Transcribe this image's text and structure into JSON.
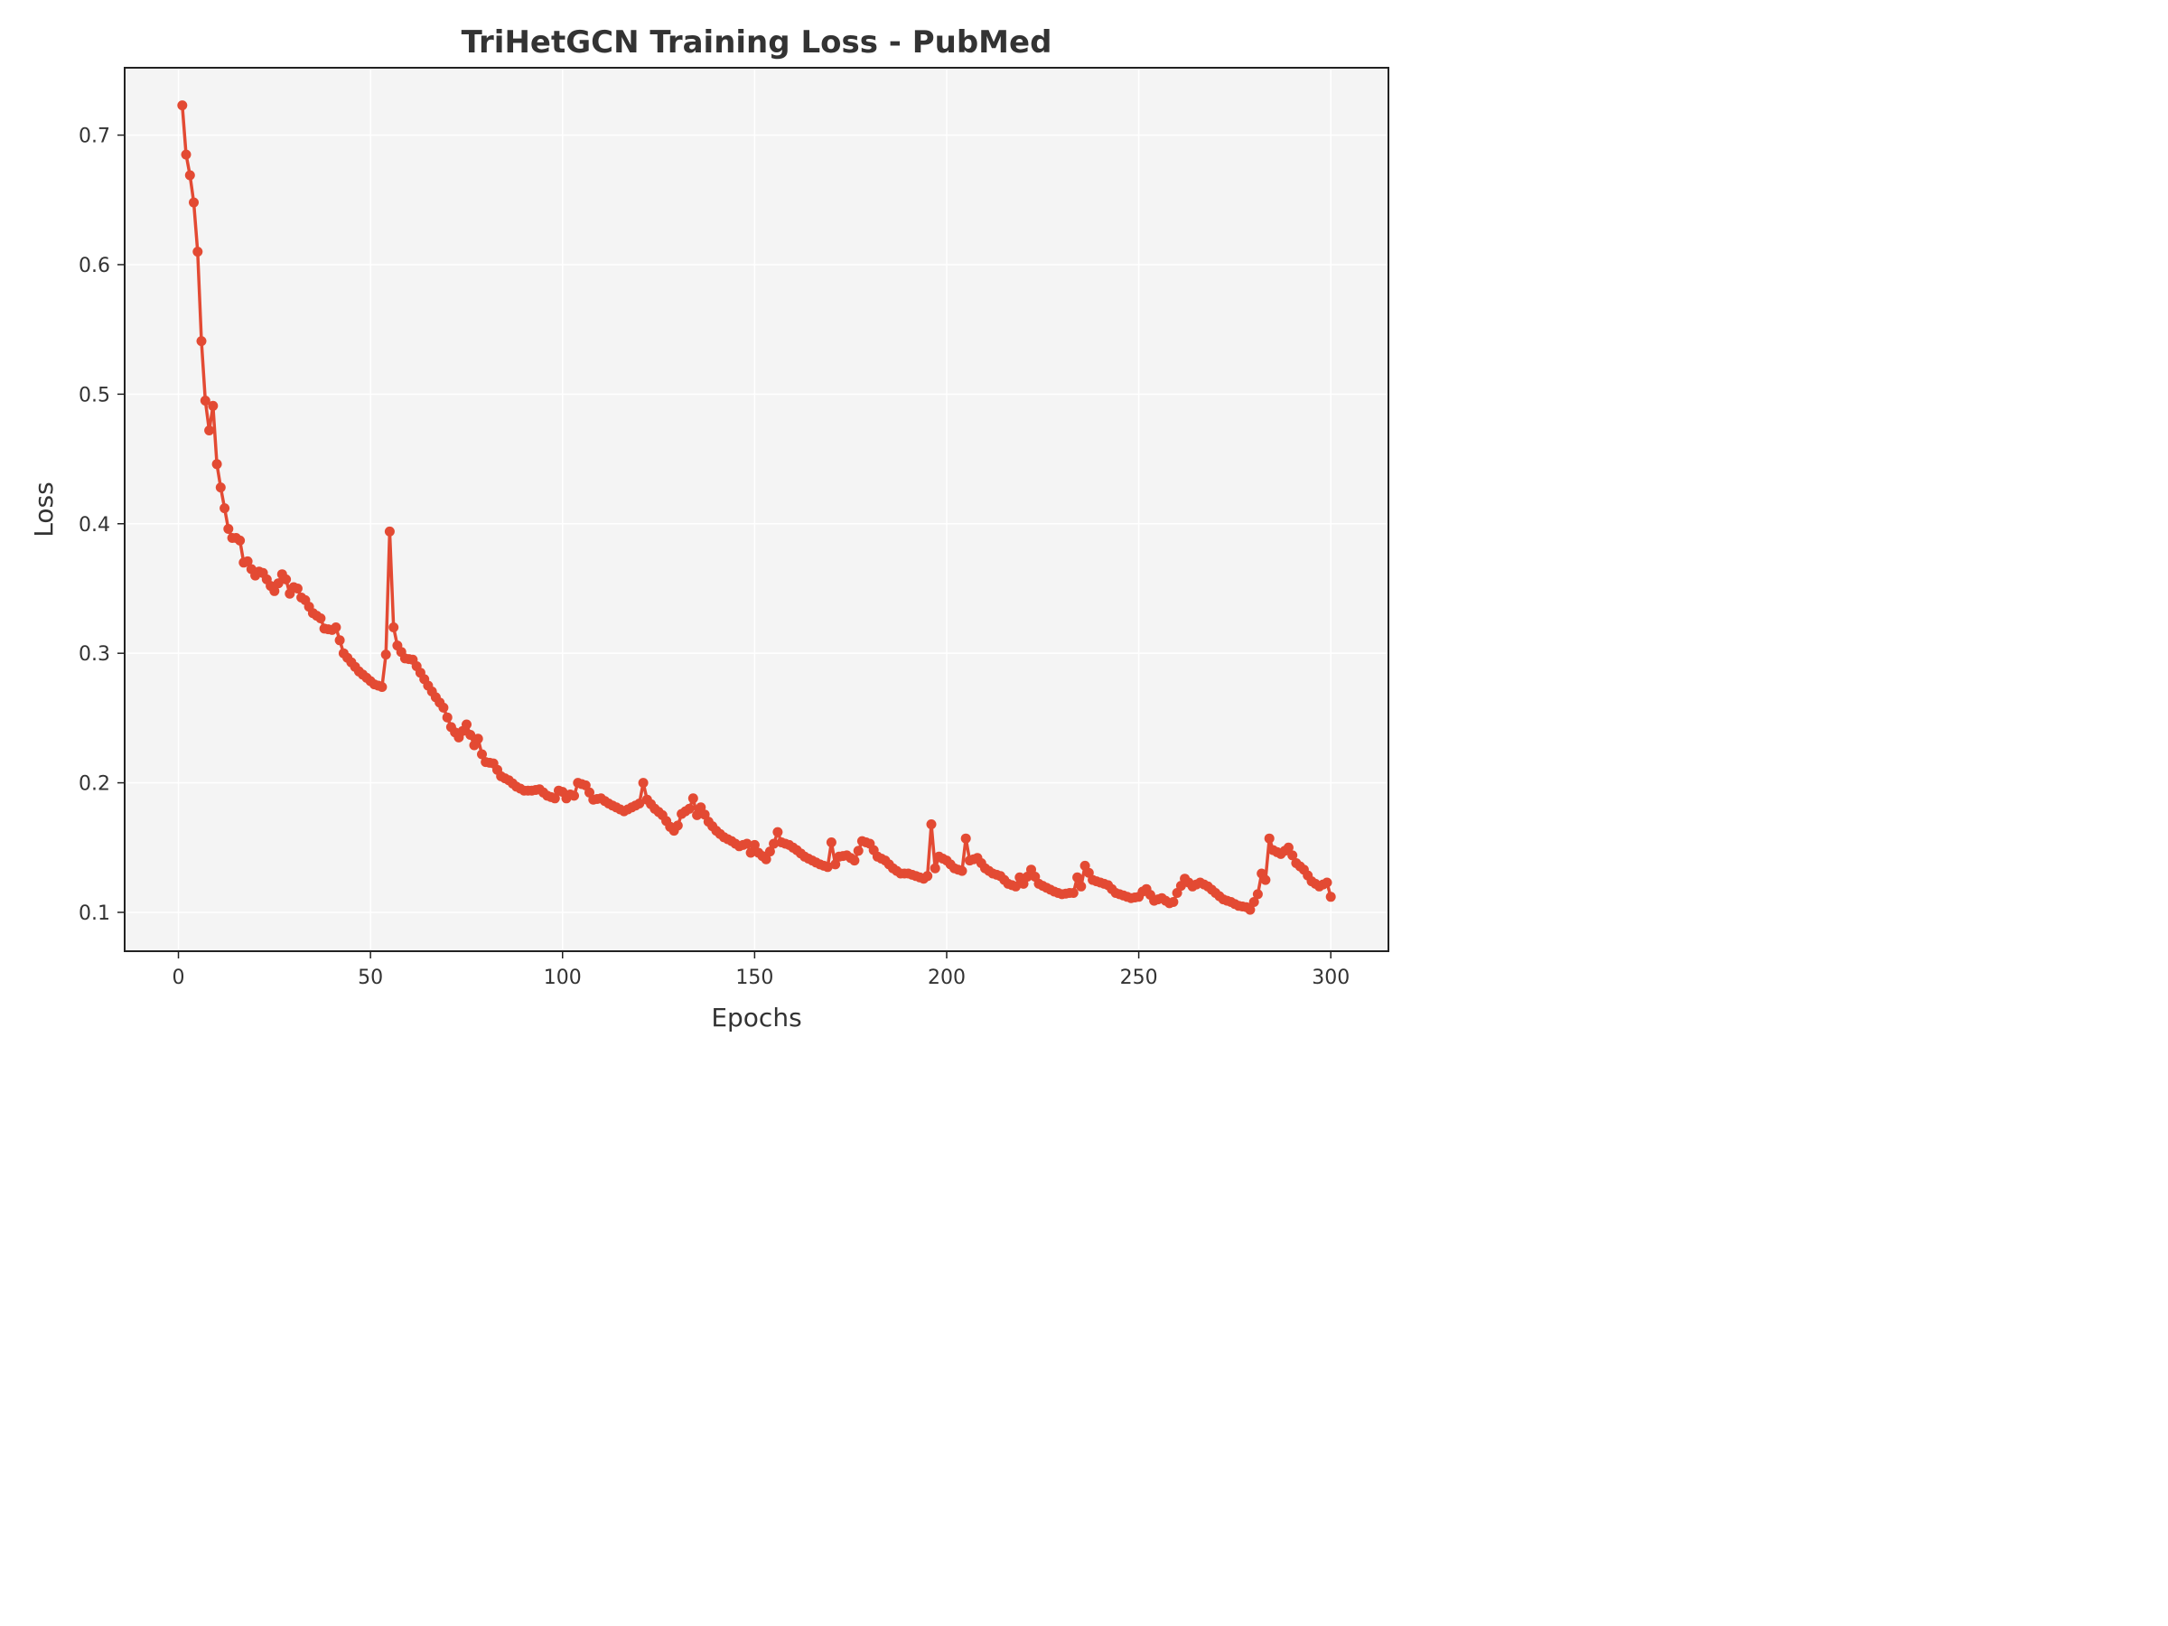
{
  "chart_data": {
    "type": "line",
    "title": "TriHetGCN Training Loss - PubMed",
    "xlabel": "Epochs",
    "ylabel": "Loss",
    "xlim": [
      -14,
      315
    ],
    "ylim": [
      0.07,
      0.752
    ],
    "xticks": [
      0,
      50,
      100,
      150,
      200,
      250,
      300
    ],
    "yticks": [
      0.1,
      0.2,
      0.3,
      0.4,
      0.5,
      0.6,
      0.7
    ],
    "xtick_labels": [
      "0",
      "50",
      "100",
      "150",
      "200",
      "250",
      "300"
    ],
    "ytick_labels": [
      "0.1",
      "0.2",
      "0.3",
      "0.4",
      "0.5",
      "0.6",
      "0.7"
    ],
    "grid": true,
    "colors": {
      "line": "#e34a33",
      "background": "#f4f4f4",
      "axes": "#222222"
    },
    "series": [
      {
        "anchors_x": [
          1,
          2,
          3,
          4,
          5,
          6,
          7,
          8,
          9,
          10,
          11,
          12,
          13,
          14,
          15,
          16,
          17,
          18,
          19,
          20,
          21,
          22,
          23,
          24,
          25,
          26,
          27,
          28,
          29,
          30,
          31,
          32,
          33,
          35,
          37,
          38,
          40,
          41,
          42,
          43,
          45,
          47,
          49,
          51,
          53,
          54,
          55,
          56,
          57,
          59,
          61,
          63,
          65,
          67,
          69,
          71,
          73,
          75,
          77,
          78,
          79,
          80,
          82,
          84,
          86,
          88,
          90,
          92,
          94,
          96,
          98,
          99,
          100,
          101,
          102,
          103,
          104,
          106,
          108,
          110,
          112,
          114,
          116,
          118,
          120,
          121,
          122,
          124,
          126,
          128,
          129,
          130,
          131,
          133,
          134,
          135,
          136,
          138,
          140,
          142,
          144,
          146,
          148,
          149,
          150,
          151,
          153,
          155,
          156,
          157,
          159,
          161,
          163,
          165,
          167,
          169,
          170,
          171,
          172,
          174,
          176,
          178,
          180,
          182,
          184,
          186,
          188,
          190,
          192,
          194,
          195,
          196,
          197,
          198,
          200,
          202,
          204,
          205,
          206,
          208,
          210,
          212,
          214,
          216,
          218,
          219,
          220,
          222,
          224,
          226,
          228,
          230,
          232,
          233,
          234,
          235,
          236,
          238,
          240,
          242,
          244,
          246,
          248,
          250,
          251,
          252,
          254,
          256,
          258,
          259,
          260,
          262,
          264,
          266,
          268,
          270,
          272,
          274,
          276,
          278,
          279,
          280,
          281,
          282,
          283,
          284,
          285,
          287,
          289,
          291,
          293,
          295,
          297,
          299,
          300
        ],
        "anchors_y": [
          0.723,
          0.685,
          0.669,
          0.648,
          0.61,
          0.541,
          0.495,
          0.472,
          0.491,
          0.446,
          0.428,
          0.412,
          0.396,
          0.389,
          0.389,
          0.387,
          0.37,
          0.371,
          0.365,
          0.36,
          0.363,
          0.362,
          0.357,
          0.352,
          0.348,
          0.354,
          0.361,
          0.357,
          0.346,
          0.351,
          0.35,
          0.343,
          0.341,
          0.331,
          0.327,
          0.319,
          0.318,
          0.32,
          0.31,
          0.3,
          0.293,
          0.286,
          0.281,
          0.276,
          0.274,
          0.299,
          0.394,
          0.32,
          0.306,
          0.296,
          0.295,
          0.285,
          0.275,
          0.266,
          0.258,
          0.243,
          0.235,
          0.245,
          0.229,
          0.234,
          0.222,
          0.216,
          0.215,
          0.205,
          0.202,
          0.197,
          0.194,
          0.194,
          0.195,
          0.19,
          0.188,
          0.194,
          0.193,
          0.188,
          0.191,
          0.19,
          0.2,
          0.198,
          0.187,
          0.188,
          0.184,
          0.181,
          0.178,
          0.181,
          0.184,
          0.2,
          0.187,
          0.18,
          0.175,
          0.166,
          0.163,
          0.167,
          0.176,
          0.18,
          0.188,
          0.175,
          0.181,
          0.17,
          0.163,
          0.158,
          0.155,
          0.151,
          0.153,
          0.146,
          0.152,
          0.146,
          0.141,
          0.153,
          0.162,
          0.154,
          0.152,
          0.148,
          0.143,
          0.14,
          0.137,
          0.135,
          0.154,
          0.137,
          0.143,
          0.144,
          0.14,
          0.155,
          0.153,
          0.143,
          0.14,
          0.134,
          0.13,
          0.13,
          0.128,
          0.126,
          0.128,
          0.168,
          0.134,
          0.143,
          0.14,
          0.134,
          0.132,
          0.157,
          0.14,
          0.142,
          0.134,
          0.13,
          0.128,
          0.122,
          0.12,
          0.127,
          0.122,
          0.133,
          0.122,
          0.119,
          0.116,
          0.114,
          0.115,
          0.115,
          0.127,
          0.12,
          0.136,
          0.125,
          0.123,
          0.121,
          0.115,
          0.113,
          0.111,
          0.112,
          0.116,
          0.118,
          0.109,
          0.111,
          0.107,
          0.108,
          0.115,
          0.126,
          0.12,
          0.123,
          0.12,
          0.115,
          0.11,
          0.108,
          0.105,
          0.104,
          0.102,
          0.108,
          0.114,
          0.13,
          0.125,
          0.157,
          0.148,
          0.145,
          0.15,
          0.138,
          0.133,
          0.124,
          0.12,
          0.123,
          0.118,
          0.115,
          0.112
        ]
      }
    ]
  }
}
